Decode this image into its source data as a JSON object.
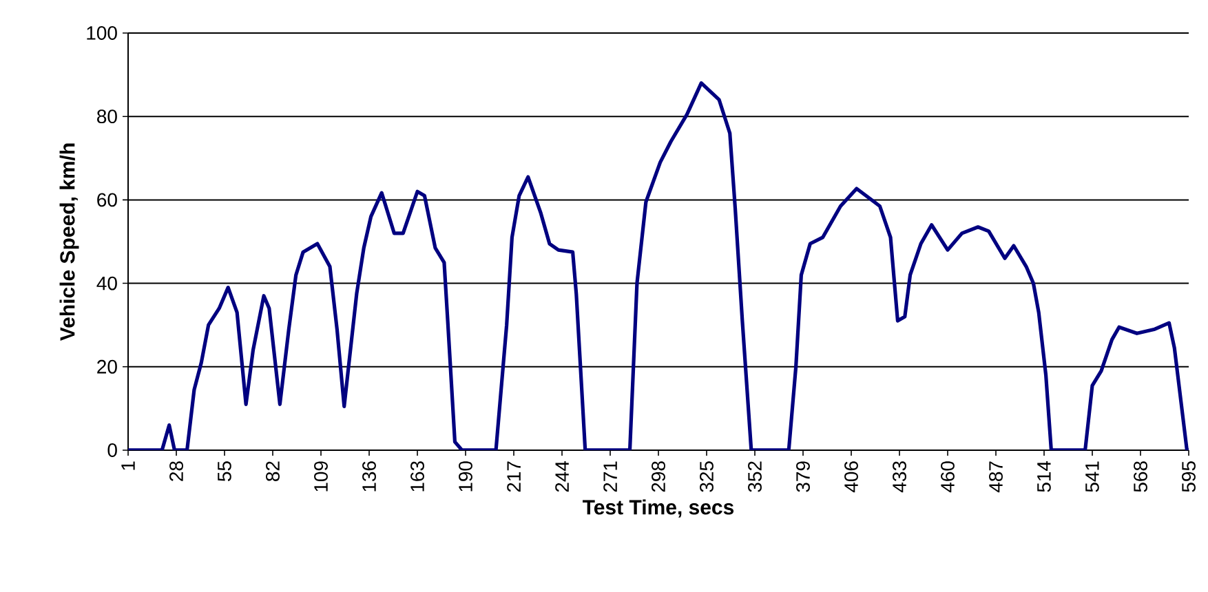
{
  "chart_data": {
    "type": "line",
    "xlabel": "Test Time, secs",
    "ylabel": "Vehicle Speed, km/h",
    "xlim": [
      1,
      595
    ],
    "xticks": [
      1,
      28,
      55,
      82,
      109,
      136,
      163,
      190,
      217,
      244,
      271,
      298,
      325,
      352,
      379,
      406,
      433,
      460,
      487,
      514,
      541,
      568,
      595
    ],
    "ylim": [
      0,
      100
    ],
    "yticks": [
      0,
      20,
      40,
      60,
      80,
      100
    ],
    "grid": "y",
    "marker": "none",
    "line_style": "solid",
    "series": [
      {
        "color": "#000080",
        "x": [
          1,
          20,
          24,
          27,
          34,
          38,
          42,
          46,
          52,
          57,
          62,
          67,
          71,
          77,
          80,
          86,
          91,
          95,
          99,
          107,
          114,
          118,
          122,
          129,
          133,
          137,
          143,
          150,
          155,
          163,
          167,
          173,
          178,
          180,
          184,
          188,
          207,
          211,
          213,
          216,
          220,
          225,
          232,
          237,
          242,
          250,
          252,
          257,
          282,
          286,
          291,
          299,
          305,
          314,
          322,
          332,
          338,
          341,
          345,
          350,
          371,
          375,
          378,
          383,
          390,
          400,
          409,
          422,
          428,
          432,
          436,
          439,
          445,
          451,
          460,
          468,
          477,
          483,
          492,
          497,
          504,
          508,
          511,
          515,
          518,
          537,
          541,
          546,
          552,
          556,
          566,
          576,
          584,
          587,
          594,
          595
        ],
        "values": [
          0,
          0,
          6,
          0,
          0,
          14.5,
          21,
          30,
          34,
          39,
          33,
          11,
          24,
          37,
          34,
          11,
          29,
          42,
          47.5,
          49.5,
          44,
          29,
          10.5,
          37.5,
          48.5,
          56,
          61.7,
          52,
          52,
          62,
          61,
          48.5,
          45,
          31,
          2,
          0,
          0,
          20,
          30,
          51,
          61,
          65.5,
          57,
          49.5,
          48,
          47.5,
          37.5,
          0,
          0,
          40,
          59.5,
          69,
          74,
          80.5,
          88,
          84,
          76,
          58,
          31,
          0,
          0,
          20,
          42,
          49.5,
          51,
          58.5,
          62.7,
          58.5,
          51,
          31,
          32,
          42,
          49.5,
          54,
          48,
          52,
          53.5,
          52.5,
          46,
          49,
          44,
          40,
          33,
          18,
          0,
          0,
          15.5,
          19,
          26.5,
          29.5,
          28,
          29,
          30.5,
          24.5,
          0,
          0
        ]
      }
    ]
  }
}
